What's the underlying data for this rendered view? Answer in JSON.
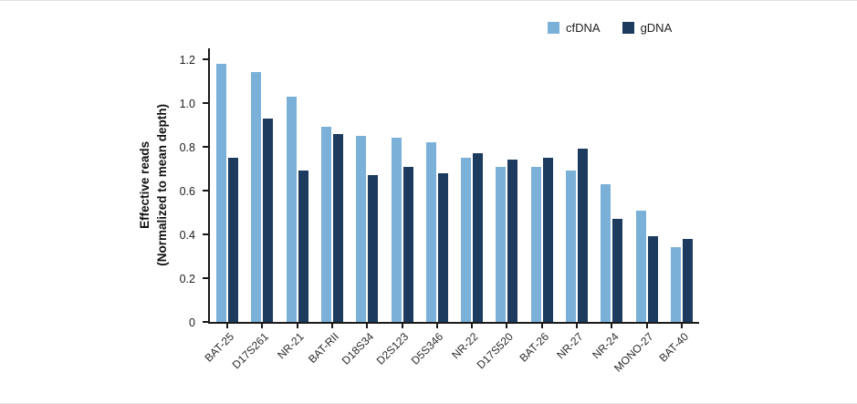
{
  "chart_data": {
    "type": "bar",
    "title": "",
    "xlabel": "",
    "ylabel_lines": [
      "Effective reads",
      "(Normalized to mean depth)"
    ],
    "categories": [
      "BAT-25",
      "D17S261",
      "NR-21",
      "BAT-RII",
      "D18S34",
      "D2S123",
      "D5S346",
      "NR-22",
      "D17S520",
      "BAT-26",
      "NR-27",
      "NR-24",
      "MONO-27",
      "BAT-40"
    ],
    "series": [
      {
        "name": "cfDNA",
        "color": "#7bb0d8",
        "values": [
          1.18,
          1.14,
          1.03,
          0.89,
          0.85,
          0.84,
          0.82,
          0.75,
          0.71,
          0.71,
          0.69,
          0.63,
          0.51,
          0.34
        ]
      },
      {
        "name": "gDNA",
        "color": "#1c3b5e",
        "values": [
          0.75,
          0.93,
          0.69,
          0.86,
          0.67,
          0.71,
          0.68,
          0.77,
          0.74,
          0.75,
          0.79,
          0.47,
          0.39,
          0.38
        ]
      }
    ],
    "yticks": [
      0,
      0.2,
      0.4,
      0.6,
      0.8,
      1.0,
      1.2
    ],
    "ylim": [
      0,
      1.25
    ],
    "grid": false,
    "legend_position": "top-right",
    "axis_color": "#1a1a1a"
  }
}
